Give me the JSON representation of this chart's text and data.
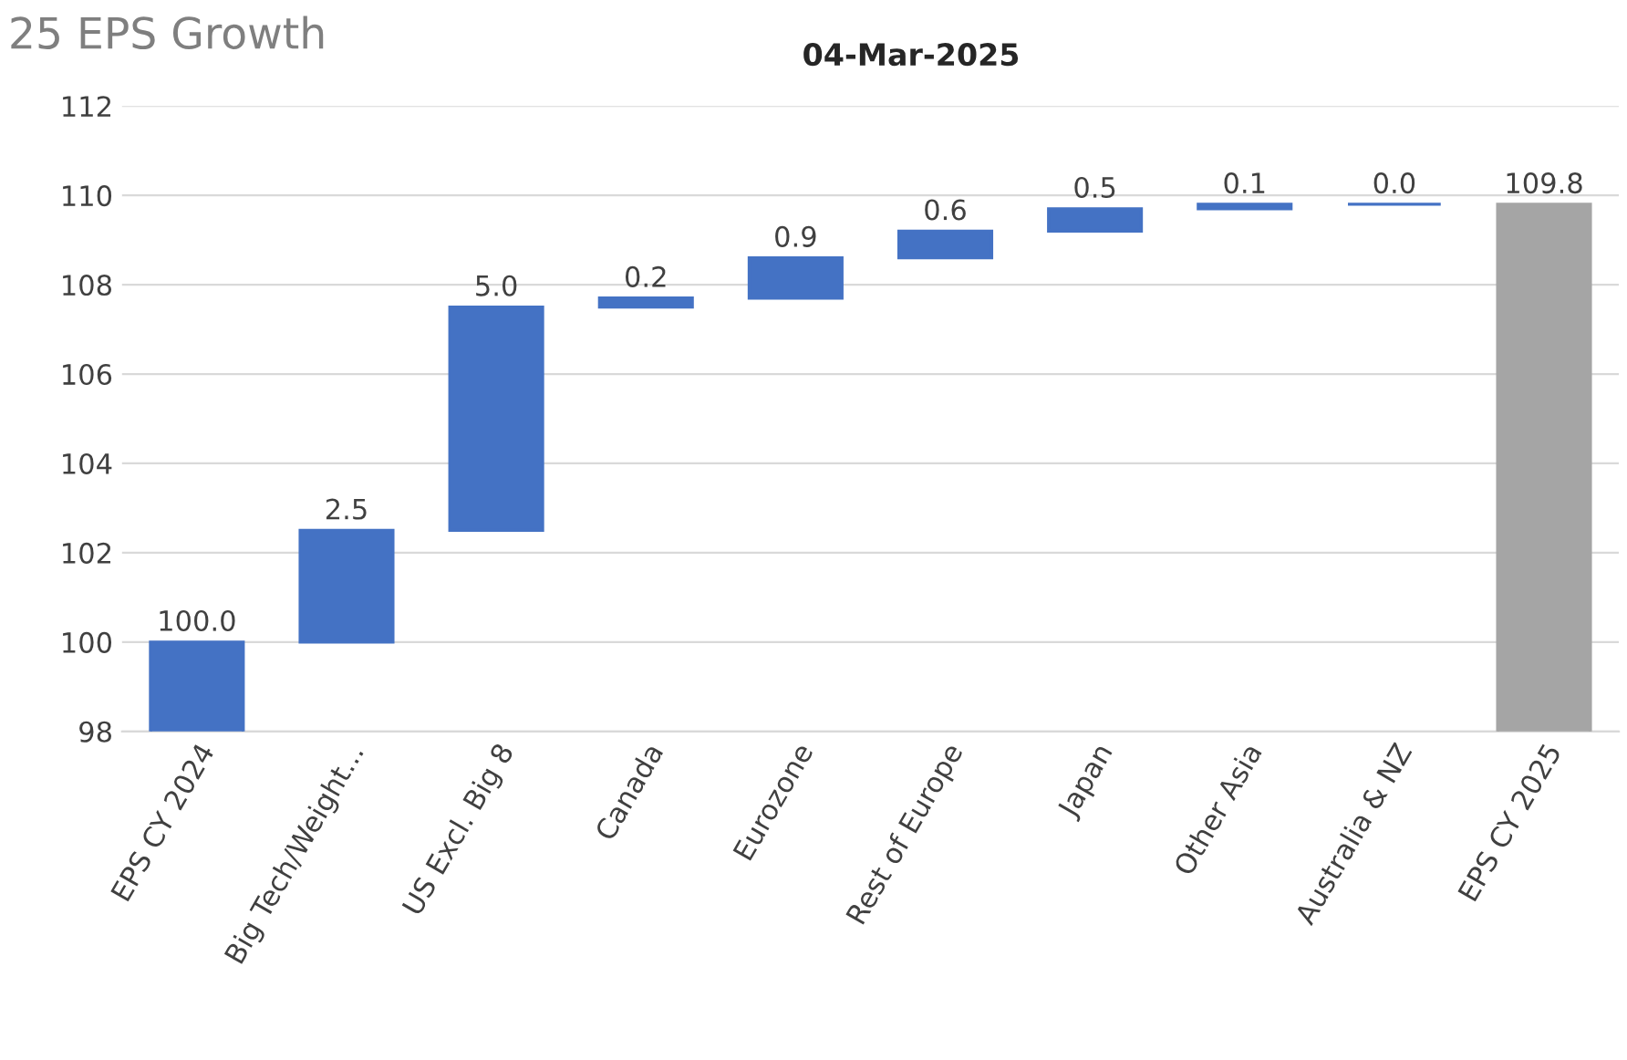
{
  "chart_data": {
    "type": "bar",
    "title": "25 EPS Growth",
    "subtitle": "04-Mar-2025",
    "categories": [
      "EPS CY 2024",
      "Big Tech/Weight...",
      "US Excl. Big 8",
      "Canada",
      "Eurozone",
      "Rest of Europe",
      "Japan",
      "Other Asia",
      "Australia & NZ",
      "EPS CY 2025"
    ],
    "values": [
      100.0,
      2.5,
      5.0,
      0.2,
      0.9,
      0.6,
      0.5,
      0.1,
      0.0,
      109.8
    ],
    "base": [
      0,
      100,
      102.5,
      107.5,
      107.7,
      108.6,
      109.2,
      109.7,
      109.8,
      0
    ],
    "colors": [
      "#4472c4",
      "#4472c4",
      "#4472c4",
      "#4472c4",
      "#4472c4",
      "#4472c4",
      "#4472c4",
      "#4472c4",
      "#4472c4",
      "#a5a5a5"
    ],
    "value_labels": [
      "100.0",
      "2.5",
      "5.0",
      "0.2",
      "0.9",
      "0.6",
      "0.5",
      "0.1",
      "0.0",
      "109.8"
    ],
    "ylim": [
      98,
      112
    ],
    "yticks": [
      98,
      100,
      102,
      104,
      106,
      108,
      110,
      112
    ],
    "grid": "y"
  }
}
